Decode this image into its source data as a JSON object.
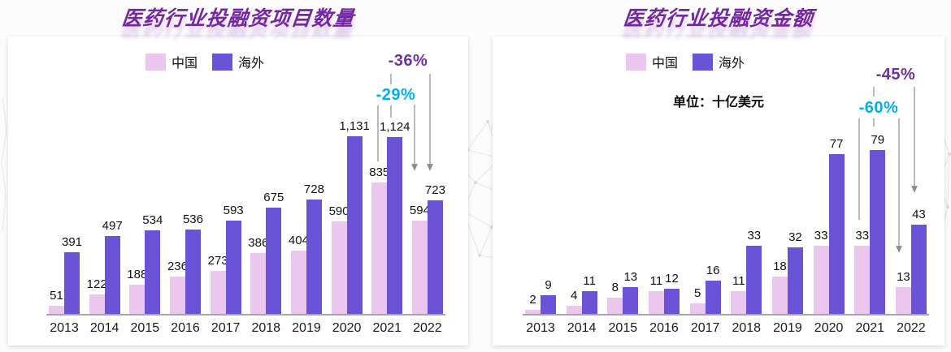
{
  "colors": {
    "china_bar": "#EBC6EF",
    "overseas_bar": "#6A53D6",
    "title_purple": "#7426A3",
    "percent_purple": "#7030A0",
    "percent_cyan": "#00B0F0",
    "leader_line_gray": "#8C8C8C",
    "axis_gray": "#A6A6A6",
    "label_black": "#111111"
  },
  "charts": [
    {
      "title": "医药行业投融资项目数量",
      "legend": [
        {
          "label": "中国",
          "color": "#EBC6EF"
        },
        {
          "label": "海外",
          "color": "#6A53D6"
        }
      ],
      "unit_label": "",
      "annotations": [
        {
          "text": "-36%",
          "color": "#7030A0",
          "series": "海外",
          "from_year": "2021",
          "from_value": 1124,
          "to_year": "2022",
          "to_value": 723
        },
        {
          "text": "-29%",
          "color": "#00B0F0",
          "series": "中国",
          "from_year": "2021",
          "from_value": 835,
          "to_year": "2022",
          "to_value": 594
        }
      ],
      "chart_data": {
        "type": "bar",
        "categories": [
          "2013",
          "2014",
          "2015",
          "2016",
          "2017",
          "2018",
          "2019",
          "2020",
          "2021",
          "2022"
        ],
        "series": [
          {
            "name": "中国",
            "color": "#EBC6EF",
            "values": [
              51,
              122,
              188,
              236,
              273,
              386,
              404,
              590,
              835,
              594
            ]
          },
          {
            "name": "海外",
            "color": "#6A53D6",
            "values": [
              391,
              497,
              534,
              536,
              593,
              675,
              728,
              1131,
              1124,
              723
            ]
          }
        ],
        "title": "医药行业投融资项目数量",
        "xlabel": "",
        "ylabel": "",
        "ylim": [
          0,
          1200
        ],
        "grid": false,
        "legend_position": "top-center",
        "data_labels": "outside-end"
      }
    },
    {
      "title": "医药行业投融资金额",
      "legend": [
        {
          "label": "中国",
          "color": "#EBC6EF"
        },
        {
          "label": "海外",
          "color": "#6A53D6"
        }
      ],
      "unit_label": "单位：十亿美元",
      "annotations": [
        {
          "text": "-45%",
          "color": "#7030A0",
          "series": "海外",
          "from_year": "2021",
          "from_value": 79,
          "to_year": "2022",
          "to_value": 43
        },
        {
          "text": "-60%",
          "color": "#00B0F0",
          "series": "中国",
          "from_year": "2021",
          "from_value": 33,
          "to_year": "2022",
          "to_value": 13
        }
      ],
      "chart_data": {
        "type": "bar",
        "categories": [
          "2013",
          "2014",
          "2015",
          "2016",
          "2017",
          "2018",
          "2019",
          "2020",
          "2021",
          "2022"
        ],
        "series": [
          {
            "name": "中国",
            "color": "#EBC6EF",
            "values": [
              2,
              4,
              8,
              11,
              5,
              11,
              18,
              33,
              33,
              13
            ]
          },
          {
            "name": "海外",
            "color": "#6A53D6",
            "values": [
              9,
              11,
              13,
              12,
              16,
              33,
              32,
              77,
              79,
              43
            ]
          }
        ],
        "title": "医药行业投融资金额",
        "xlabel": "",
        "ylabel": "",
        "ylim": [
          0,
          85
        ],
        "grid": false,
        "legend_position": "top-center",
        "data_labels": "outside-end"
      }
    }
  ]
}
